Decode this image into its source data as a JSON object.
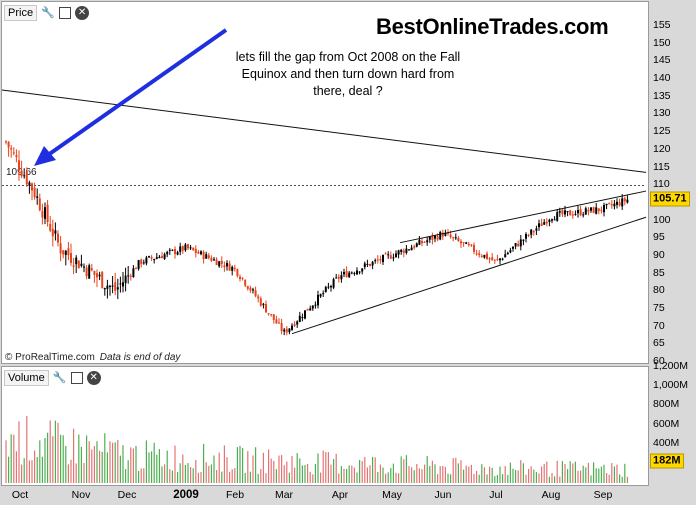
{
  "header_price": {
    "label": "Price",
    "icons": [
      "wrench-icon",
      "window-icon",
      "close-icon"
    ]
  },
  "header_volume": {
    "label": "Volume",
    "icons": [
      "wrench-icon",
      "window-icon",
      "close-icon"
    ]
  },
  "site_title": "BestOnlineTrades.com",
  "annotation": "lets fill the gap from Oct 2008 on the Fall\nEquinox and then turn down hard from\nthere, deal ?",
  "footnote": {
    "source": "© ProRealTime.com",
    "note": "Data is end of day"
  },
  "level_label": "109.66",
  "colors": {
    "up": "#000000",
    "down": "#e8431c",
    "arrow": "#1f2fe0",
    "badge": "#ffd800",
    "vol_up": "#4caf50",
    "vol_down": "#e57373"
  },
  "chart_data": [
    {
      "type": "candlestick",
      "x_categories": [
        "Oct",
        "Nov",
        "Dec",
        "2009",
        "Feb",
        "Mar",
        "Apr",
        "May",
        "Jun",
        "Jul",
        "Aug",
        "Sep"
      ],
      "y_ticks": [
        60,
        65,
        70,
        75,
        80,
        85,
        90,
        95,
        100,
        105,
        110,
        115,
        120,
        125,
        130,
        135,
        140,
        145,
        150,
        155
      ],
      "ylim": [
        60,
        157
      ],
      "last_value": "105.71",
      "gap_level": 109.66,
      "anchors": [
        {
          "month": "Oct",
          "price": 124
        },
        {
          "month": "Oct",
          "price": 108
        },
        {
          "month": "Nov",
          "price": 92
        },
        {
          "month": "Nov",
          "price": 80
        },
        {
          "month": "Dec",
          "price": 88
        },
        {
          "month": "2009",
          "price": 92
        },
        {
          "month": "Feb",
          "price": 86
        },
        {
          "month": "Mar",
          "price": 68
        },
        {
          "month": "Apr",
          "price": 84
        },
        {
          "month": "May",
          "price": 90
        },
        {
          "month": "Jun",
          "price": 96
        },
        {
          "month": "Jul",
          "price": 88
        },
        {
          "month": "Aug",
          "price": 101
        },
        {
          "month": "Sep",
          "price": 103
        },
        {
          "month": "Sep",
          "price": 105.71
        }
      ],
      "trendlines": [
        {
          "name": "long-term resistance",
          "from": {
            "month": "Oct",
            "price": 136
          },
          "to": {
            "month": "Sep",
            "price": 114
          }
        },
        {
          "name": "wedge upper",
          "from": {
            "month": "May",
            "price": 93
          },
          "to": {
            "month": "Sep",
            "price": 107
          }
        },
        {
          "name": "wedge lower",
          "from": {
            "month": "Mar",
            "price": 67
          },
          "to": {
            "month": "Sep",
            "price": 99
          }
        }
      ]
    },
    {
      "type": "bar",
      "name": "Volume",
      "y_ticks": [
        "1,200M",
        "1,000M",
        "800M",
        "600M",
        "400M",
        "200M"
      ],
      "ylim": [
        0,
        1300
      ],
      "last_value": "182M",
      "anchors": [
        {
          "month": "Oct",
          "volume": 600
        },
        {
          "month": "Nov",
          "volume": 500
        },
        {
          "month": "Dec",
          "volume": 380
        },
        {
          "month": "2009",
          "volume": 350
        },
        {
          "month": "Mar",
          "volume": 300
        },
        {
          "month": "May",
          "volume": 250
        },
        {
          "month": "Jul",
          "volume": 200
        },
        {
          "month": "Sep",
          "volume": 190
        }
      ]
    }
  ]
}
